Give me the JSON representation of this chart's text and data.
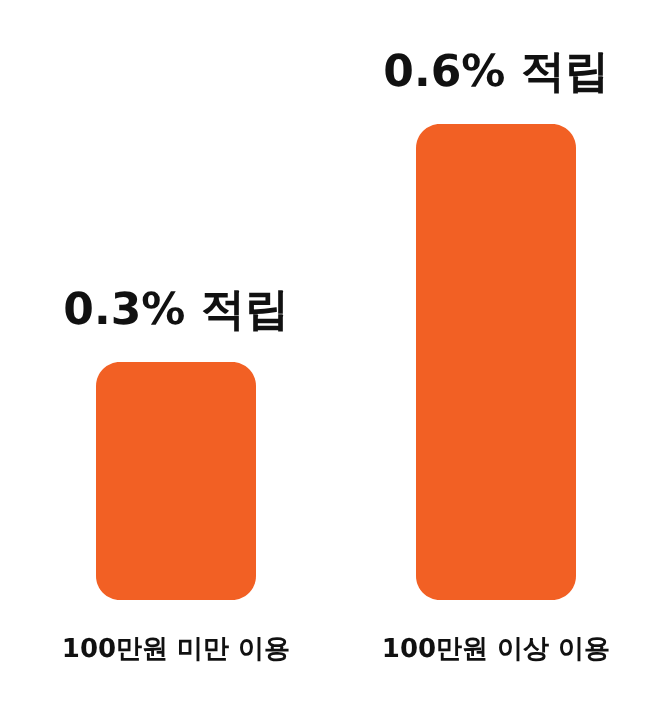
{
  "chart_data": {
    "type": "bar",
    "categories": [
      "100만원 미만 이용",
      "100만원 이상 이용"
    ],
    "values": [
      0.3,
      0.6
    ],
    "value_labels": [
      "0.3% 적립",
      "0.6% 적립"
    ],
    "color": "#f26024"
  }
}
